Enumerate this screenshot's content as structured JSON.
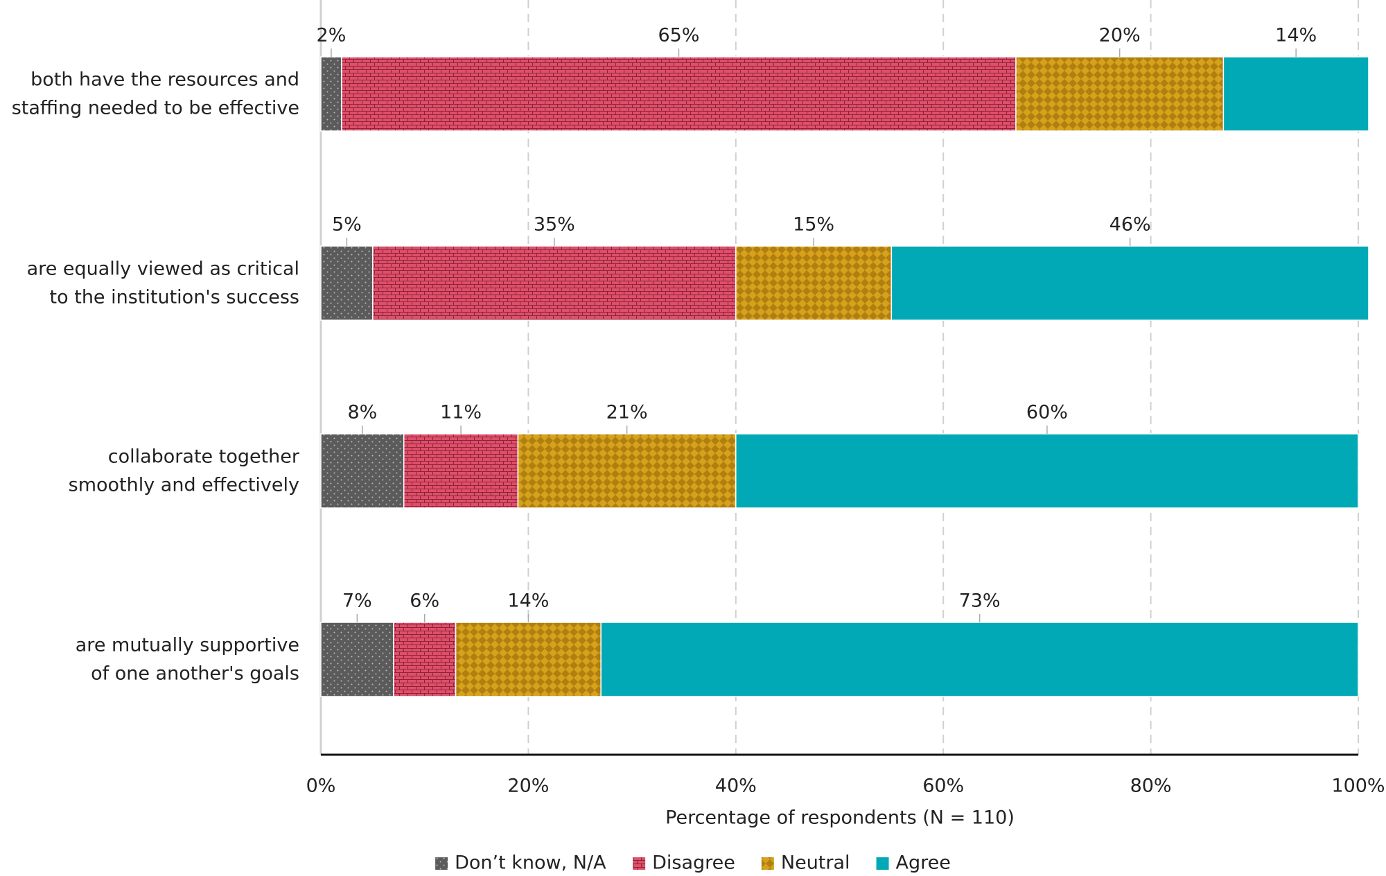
{
  "chart_data": {
    "type": "stacked-bar-horizontal",
    "categories": [
      "both have the resources and\nstaffing needed to be effective",
      "are equally viewed as critical\nto the institution's success",
      "collaborate together\nsmoothly and effectively",
      "are mutually supportive\nof one another's goals"
    ],
    "series": [
      {
        "name": "Don’t know, N/A",
        "color": "#5b5b5b",
        "pattern": "dots",
        "values": [
          2,
          5,
          8,
          7
        ],
        "value_labels": [
          "2%",
          "5%",
          "8%",
          "7%"
        ]
      },
      {
        "name": "Disagree",
        "color": "#df4f6b",
        "pattern": "bricks",
        "values": [
          65,
          35,
          11,
          6
        ],
        "value_labels": [
          "65%",
          "35%",
          "11%",
          "6%"
        ]
      },
      {
        "name": "Neutral",
        "color": "#d6a21c",
        "pattern": "diamonds",
        "values": [
          20,
          15,
          21,
          14
        ],
        "value_labels": [
          "20%",
          "15%",
          "21%",
          "14%"
        ]
      },
      {
        "name": "Agree",
        "color": "#00a9b5",
        "pattern": "solid",
        "values": [
          14,
          46,
          60,
          73
        ],
        "value_labels": [
          "14%",
          "46%",
          "60%",
          "73%"
        ]
      }
    ],
    "xlabel": "Percentage of respondents (N = 110)",
    "xlim": [
      0,
      100
    ],
    "xticks": [
      {
        "value": 0,
        "label": "0%"
      },
      {
        "value": 20,
        "label": "20%"
      },
      {
        "value": 40,
        "label": "40%"
      },
      {
        "value": 60,
        "label": "60%"
      },
      {
        "value": 80,
        "label": "80%"
      },
      {
        "value": 100,
        "label": "100%"
      }
    ],
    "grid": true,
    "legend": "bottom"
  }
}
